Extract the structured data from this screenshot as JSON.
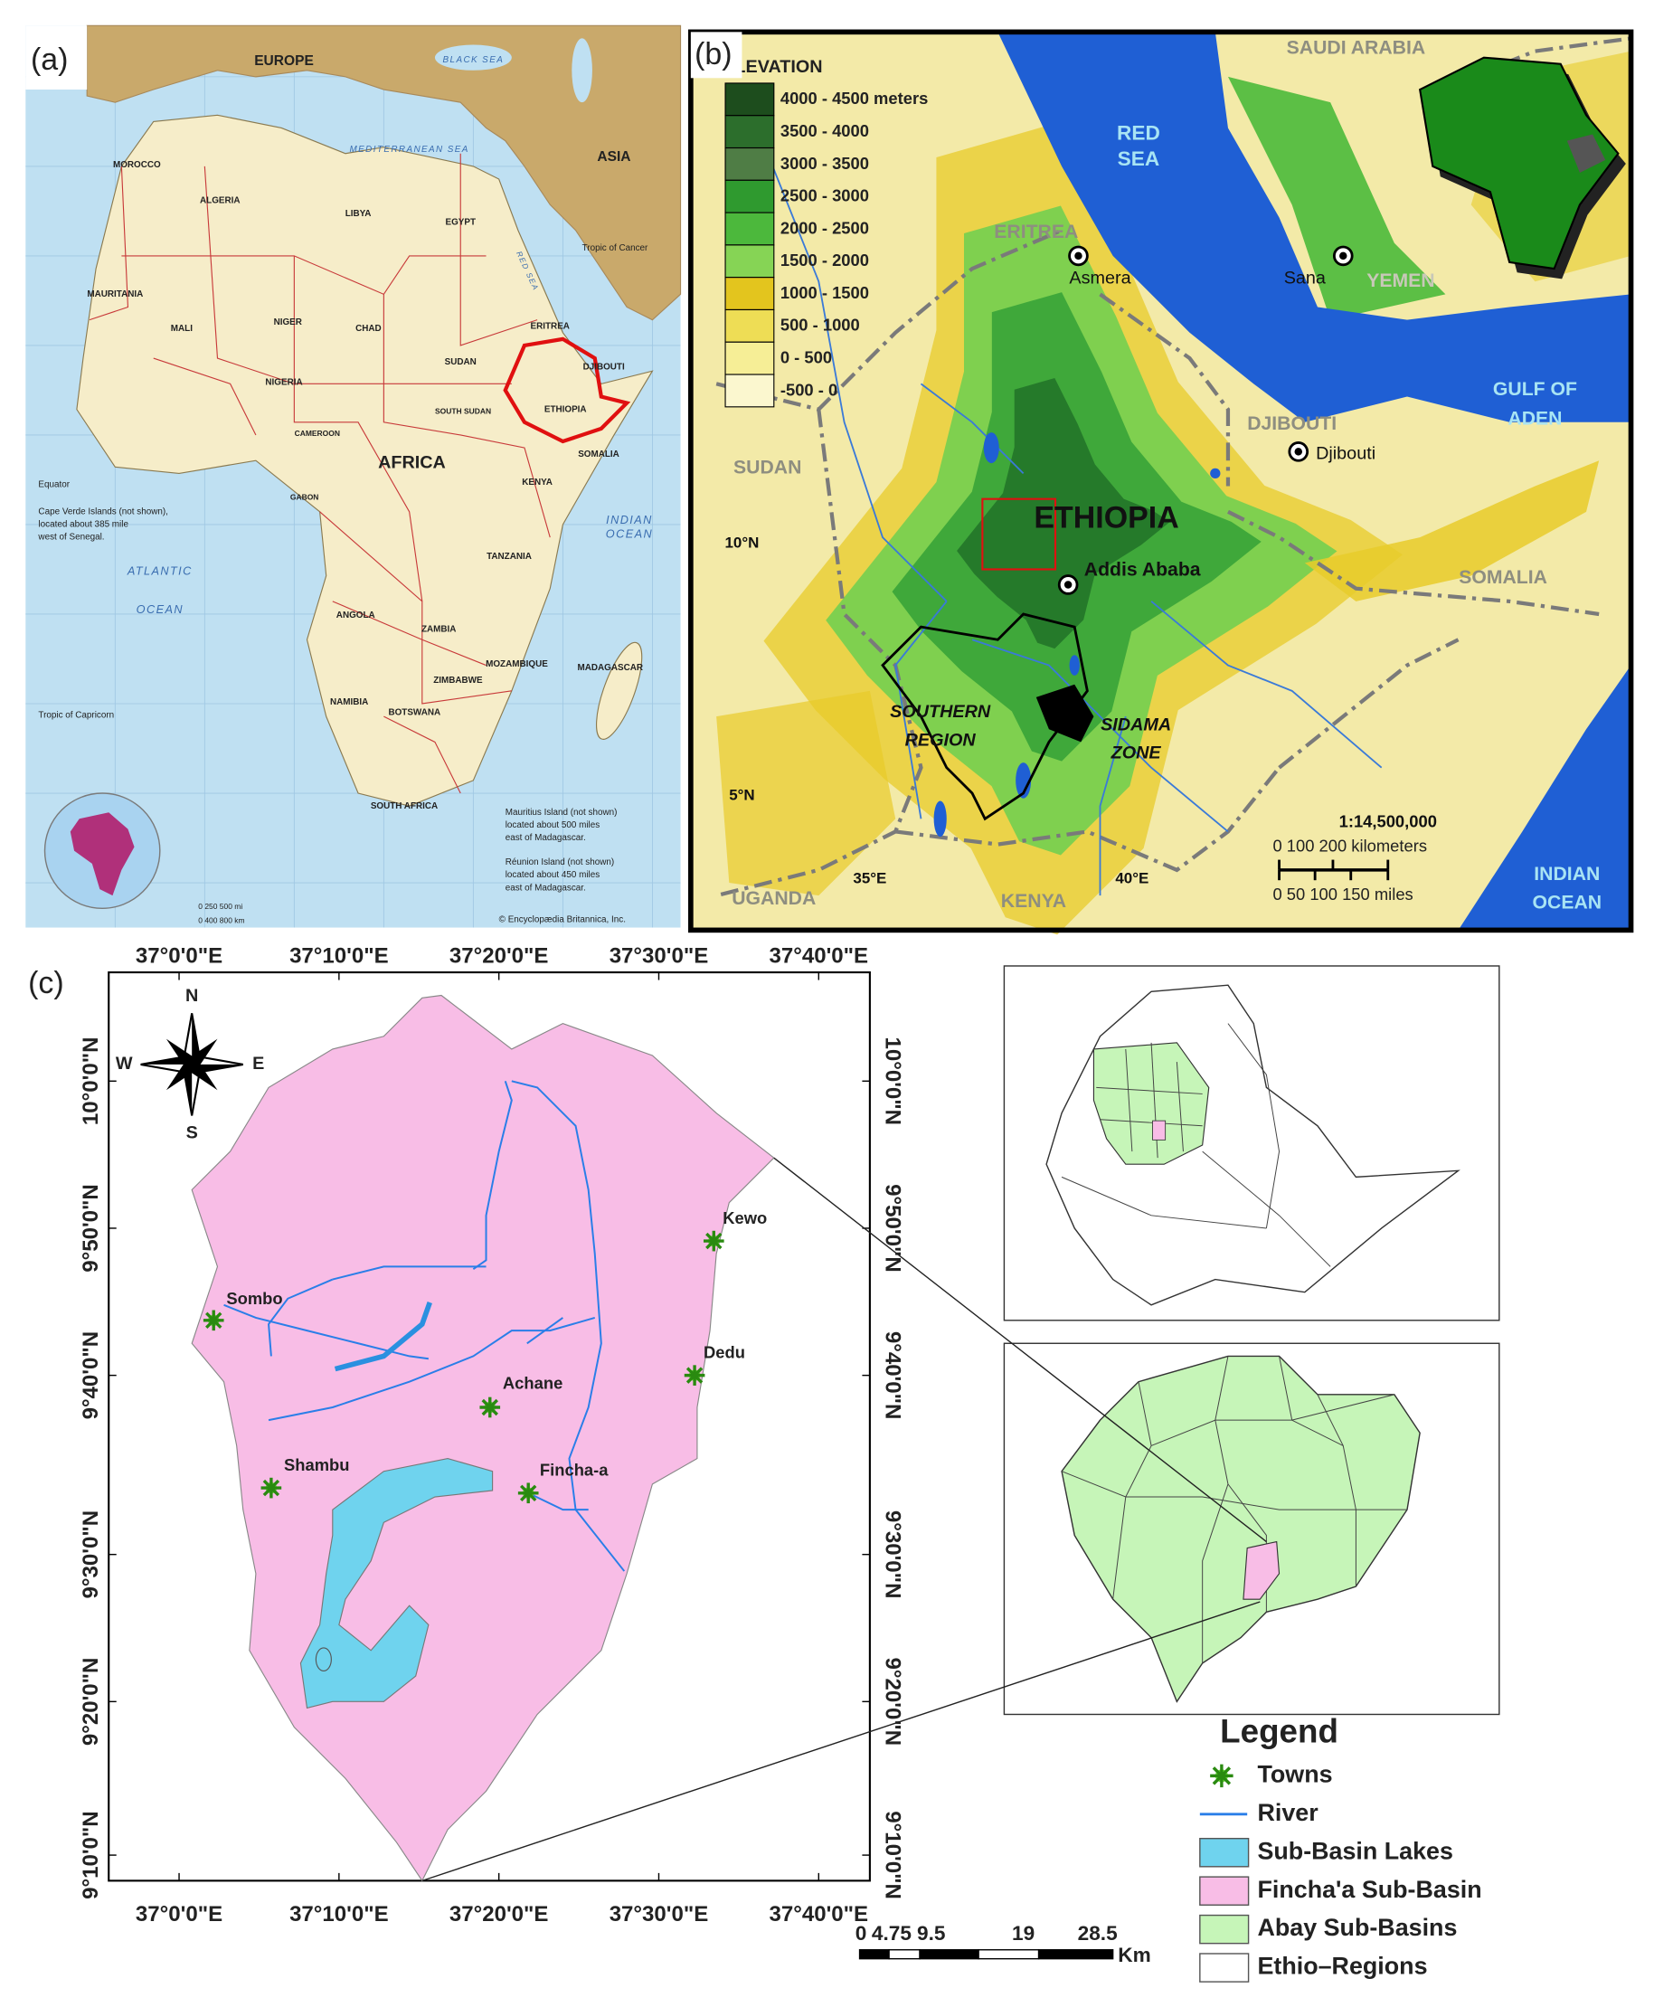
{
  "panel_a": {
    "label": "(a)",
    "labels": [
      "EUROPE",
      "ASIA",
      "AFRICA",
      "ATLANTIC",
      "OCEAN",
      "INDIAN",
      "OCEAN",
      "MEDITERRANEAN SEA",
      "BLACK SEA",
      "ALGERIA",
      "LIBYA",
      "EGYPT",
      "MALI",
      "NIGER",
      "CHAD",
      "SUDAN",
      "ETHIOPIA",
      "SOMALIA",
      "KENYA",
      "TANZANIA",
      "ANGOLA",
      "ZAMBIA",
      "NAMIBIA",
      "BOTSWANA",
      "SOUTH AFRICA",
      "MOZAMBIQUE",
      "MADAGASCAR",
      "NIGERIA",
      "MOROCCO",
      "MAURITANIA",
      "ZIMBABWE",
      "ERITREA",
      "DJIBOUTI",
      "SOUTH SUDAN",
      "CAMEROON",
      "GABON",
      "Equator",
      "Tropic of Cancer",
      "Tropic of Capricorn",
      "© Encyclopædia Britannica, Inc.",
      "RED SEA",
      "Cape Verde Islands (not shown),",
      "located about 385 mile",
      "west of Senegal.",
      "Mauritius Island (not shown)",
      "located about 500 miles",
      "east of Madagascar.",
      "Réunion Island (not shown)",
      "located about 450 miles",
      "east of Madagascar.",
      "0    250   500 mi",
      "0   400   800 km"
    ]
  },
  "panel_b": {
    "label": "(b)",
    "legend_title": "ELEVATION",
    "elevation_classes": [
      "4000 - 4500 meters",
      "3500 - 4000",
      "3000 - 3500",
      "2500 - 3000",
      "2000 - 2500",
      "1500 - 2000",
      "1000 - 1500",
      "500 - 1000",
      "0 - 500",
      "-500 - 0"
    ],
    "labels": [
      "RED",
      "SEA",
      "SAUDI ARABIA",
      "ERITREA",
      "Asmera",
      "Sana",
      "YEMEN",
      "DJIBOUTI",
      "Djibouti",
      "GULF OF",
      "ADEN",
      "SUDAN",
      "ETHIOPIA",
      "10°N",
      "Addis Ababa",
      "SOMALIA",
      "SOUTHERN",
      "REGION",
      "SIDAMA",
      "ZONE",
      "5°N",
      "1:14,500,000",
      "0    100   200 kilometers",
      "0  50 100  150 miles",
      "UGANDA",
      "35°E",
      "KENYA",
      "40°E",
      "INDIAN",
      "OCEAN"
    ]
  },
  "panel_c": {
    "label": "(c)",
    "lon_labels": [
      "37°0'0\"E",
      "37°10'0\"E",
      "37°20'0\"E",
      "37°30'0\"E",
      "37°40'0\"E"
    ],
    "lat_labels": [
      "10°0'0\"N",
      "9°50'0\"N",
      "9°40'0\"N",
      "9°30'0\"N",
      "9°20'0\"N",
      "9°10'0\"N"
    ],
    "compass": [
      "N",
      "S",
      "E",
      "W"
    ],
    "towns": [
      "Kewo",
      "Sombo",
      "Dedu",
      "Achane",
      "Shambu",
      "Fincha-a"
    ],
    "legend": {
      "title": "Legend",
      "items": [
        "Towns",
        "River",
        "Sub-Basin Lakes",
        "Fincha'a Sub-Basin",
        "Abay Sub-Basins",
        "Ethio–Regions"
      ]
    },
    "scale": {
      "ticks": [
        "0",
        "4.75",
        "9.5",
        "19",
        "28.5"
      ],
      "unit": "Km"
    }
  }
}
